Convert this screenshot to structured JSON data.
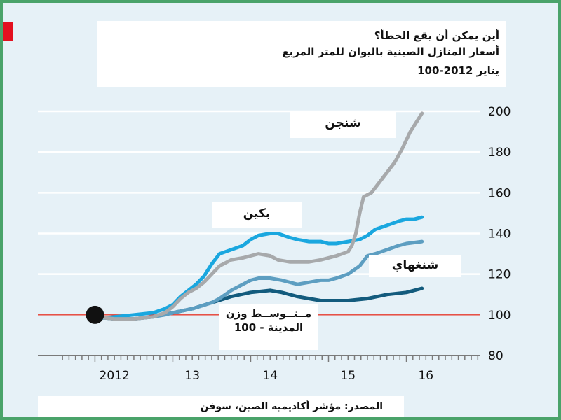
{
  "chart_data": {
    "type": "line",
    "title": "أين يمكن أن يقع الخطأ؟",
    "subtitle": "أسعار المنازل الصينية باليوان للمتر المربع",
    "index_note": "يناير 2012-100",
    "source": "المصدر: مؤشر أكاديمية الصين، سوفن",
    "ylim": [
      80,
      200
    ],
    "yticks": [
      "200",
      "180",
      "160",
      "140",
      "120",
      "100",
      "80"
    ],
    "xlim": [
      2011.6,
      2016.95
    ],
    "xticks": [
      {
        "x": 2012.25,
        "label": "2012"
      },
      {
        "x": 2013.25,
        "label": "13"
      },
      {
        "x": 2014.25,
        "label": "14"
      },
      {
        "x": 2015.25,
        "label": "15"
      },
      {
        "x": 2016.25,
        "label": "16"
      }
    ],
    "baseline": 100,
    "grid": true,
    "colors": {
      "shenzhen": "#a7a9ab",
      "beijing": "#1aa7df",
      "shanghai": "#5d9ec1",
      "average": "#135b7d",
      "baseline": "#e63a2e",
      "grid": "#ffffff",
      "background": "#e6f1f7"
    },
    "series": [
      {
        "key": "shenzhen",
        "name": "شنجن",
        "points": [
          [
            2012.0,
            99
          ],
          [
            2012.25,
            98
          ],
          [
            2012.5,
            98
          ],
          [
            2012.75,
            99
          ],
          [
            2012.9,
            101
          ],
          [
            2013.0,
            104
          ],
          [
            2013.1,
            108
          ],
          [
            2013.2,
            111
          ],
          [
            2013.3,
            113
          ],
          [
            2013.4,
            116
          ],
          [
            2013.5,
            120
          ],
          [
            2013.6,
            124
          ],
          [
            2013.75,
            127
          ],
          [
            2013.9,
            128
          ],
          [
            2014.0,
            129
          ],
          [
            2014.1,
            130
          ],
          [
            2014.25,
            129
          ],
          [
            2014.35,
            127
          ],
          [
            2014.5,
            126
          ],
          [
            2014.65,
            126
          ],
          [
            2014.75,
            126
          ],
          [
            2014.9,
            127
          ],
          [
            2015.0,
            128
          ],
          [
            2015.1,
            129
          ],
          [
            2015.25,
            131
          ],
          [
            2015.3,
            134
          ],
          [
            2015.35,
            140
          ],
          [
            2015.4,
            150
          ],
          [
            2015.45,
            158
          ],
          [
            2015.55,
            160
          ],
          [
            2015.65,
            165
          ],
          [
            2015.75,
            170
          ],
          [
            2015.85,
            175
          ],
          [
            2015.95,
            182
          ],
          [
            2016.05,
            190
          ],
          [
            2016.15,
            196
          ],
          [
            2016.2,
            199
          ]
        ]
      },
      {
        "key": "beijing",
        "name": "بكين",
        "points": [
          [
            2012.0,
            98
          ],
          [
            2012.25,
            99
          ],
          [
            2012.5,
            100
          ],
          [
            2012.75,
            101
          ],
          [
            2012.9,
            103
          ],
          [
            2013.0,
            105
          ],
          [
            2013.1,
            109
          ],
          [
            2013.2,
            112
          ],
          [
            2013.3,
            115
          ],
          [
            2013.4,
            119
          ],
          [
            2013.5,
            125
          ],
          [
            2013.6,
            130
          ],
          [
            2013.75,
            132
          ],
          [
            2013.9,
            134
          ],
          [
            2014.0,
            137
          ],
          [
            2014.1,
            139
          ],
          [
            2014.25,
            140
          ],
          [
            2014.35,
            140
          ],
          [
            2014.5,
            138
          ],
          [
            2014.6,
            137
          ],
          [
            2014.75,
            136
          ],
          [
            2014.9,
            136
          ],
          [
            2015.0,
            135
          ],
          [
            2015.1,
            135
          ],
          [
            2015.25,
            136
          ],
          [
            2015.4,
            137
          ],
          [
            2015.5,
            139
          ],
          [
            2015.6,
            142
          ],
          [
            2015.75,
            144
          ],
          [
            2015.9,
            146
          ],
          [
            2016.0,
            147
          ],
          [
            2016.1,
            147
          ],
          [
            2016.2,
            148
          ]
        ]
      },
      {
        "key": "shanghai",
        "name": "شنغهاي",
        "points": [
          [
            2012.0,
            99
          ],
          [
            2012.25,
            98
          ],
          [
            2012.5,
            98
          ],
          [
            2012.75,
            99
          ],
          [
            2012.9,
            100
          ],
          [
            2013.0,
            101
          ],
          [
            2013.25,
            103
          ],
          [
            2013.5,
            106
          ],
          [
            2013.6,
            108
          ],
          [
            2013.75,
            112
          ],
          [
            2013.9,
            115
          ],
          [
            2014.0,
            117
          ],
          [
            2014.1,
            118
          ],
          [
            2014.25,
            118
          ],
          [
            2014.4,
            117
          ],
          [
            2014.5,
            116
          ],
          [
            2014.6,
            115
          ],
          [
            2014.75,
            116
          ],
          [
            2014.9,
            117
          ],
          [
            2015.0,
            117
          ],
          [
            2015.1,
            118
          ],
          [
            2015.25,
            120
          ],
          [
            2015.4,
            124
          ],
          [
            2015.5,
            129
          ],
          [
            2015.6,
            130
          ],
          [
            2015.75,
            132
          ],
          [
            2015.9,
            134
          ],
          [
            2016.0,
            135
          ],
          [
            2016.2,
            136
          ]
        ]
      },
      {
        "key": "average",
        "name": "متوسط وزن المدينة - 100",
        "points": [
          [
            2012.0,
            99
          ],
          [
            2012.25,
            98
          ],
          [
            2012.5,
            98
          ],
          [
            2012.75,
            99
          ],
          [
            2013.0,
            101
          ],
          [
            2013.25,
            103
          ],
          [
            2013.5,
            106
          ],
          [
            2013.75,
            109
          ],
          [
            2014.0,
            111
          ],
          [
            2014.25,
            112
          ],
          [
            2014.4,
            111
          ],
          [
            2014.6,
            109
          ],
          [
            2014.75,
            108
          ],
          [
            2014.9,
            107
          ],
          [
            2015.0,
            107
          ],
          [
            2015.25,
            107
          ],
          [
            2015.5,
            108
          ],
          [
            2015.75,
            110
          ],
          [
            2016.0,
            111
          ],
          [
            2016.2,
            113
          ]
        ]
      }
    ],
    "labels": {
      "shenzhen": "شنجن",
      "beijing": "بكين",
      "shanghai": "شنغهاي",
      "average_line1": "مــتــوســط وزن",
      "average_line2": "المدينة - 100"
    }
  }
}
